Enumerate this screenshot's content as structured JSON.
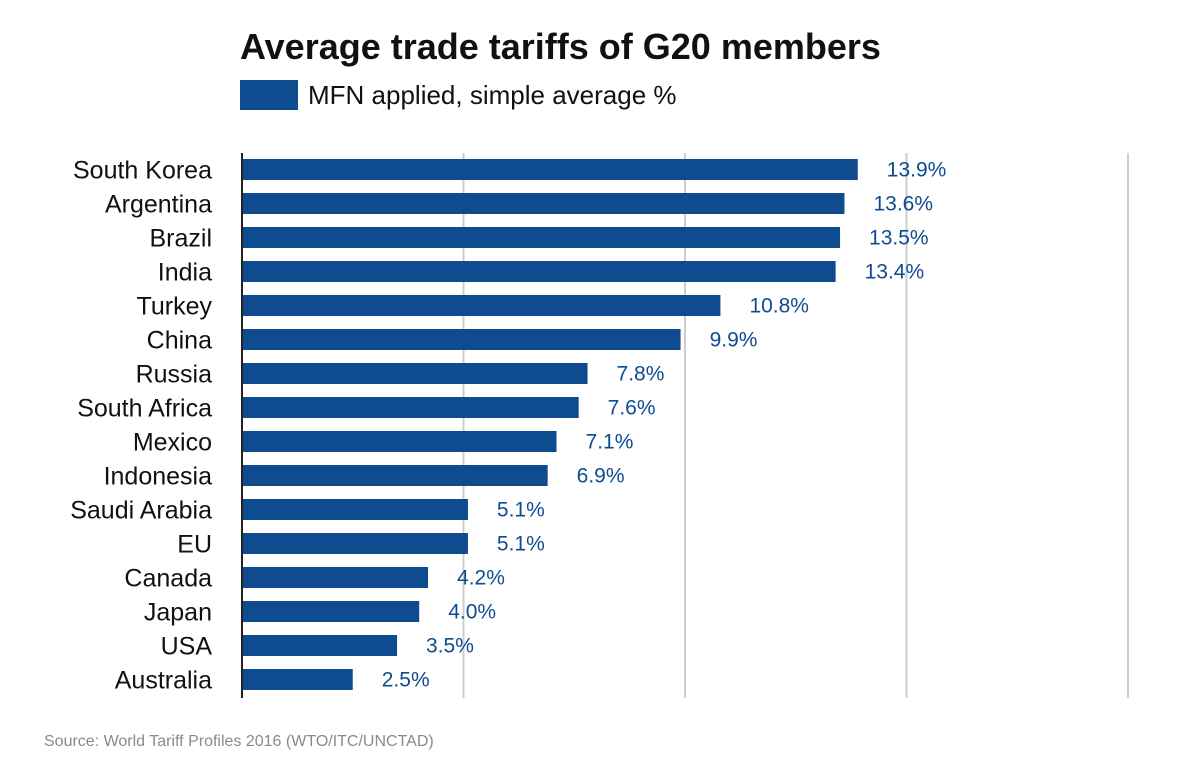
{
  "chart_data": {
    "type": "bar",
    "orientation": "horizontal",
    "title": "Average trade tariffs of G20 members",
    "legend": [
      {
        "label": "MFN applied, simple average %",
        "color": "#0f4c8f"
      }
    ],
    "categories": [
      "South Korea",
      "Argentina",
      "Brazil",
      "India",
      "Turkey",
      "China",
      "Russia",
      "South Africa",
      "Mexico",
      "Indonesia",
      "Saudi Arabia",
      "EU",
      "Canada",
      "Japan",
      "USA",
      "Australia"
    ],
    "series": [
      {
        "name": "MFN applied, simple average %",
        "values": [
          13.9,
          13.6,
          13.5,
          13.4,
          10.8,
          9.9,
          7.8,
          7.6,
          7.1,
          6.9,
          5.1,
          5.1,
          4.2,
          4.0,
          3.5,
          2.5
        ],
        "labels": [
          "13.9%",
          "13.6%",
          "13.5%",
          "13.4%",
          "10.8%",
          "9.9%",
          "7.8%",
          "7.6%",
          "7.1%",
          "6.9%",
          "5.1%",
          "5.1%",
          "4.2%",
          "4.0%",
          "3.5%",
          "2.5%"
        ]
      }
    ],
    "xlim": [
      0,
      20
    ],
    "gridlines_x": [
      5,
      10,
      15,
      20
    ],
    "grid": "vertical",
    "x_tick_labels": false,
    "legend_position": "top",
    "bar_color": "#0f4c8f",
    "label_color": "#0f4c8f",
    "grid_color": "#cccccc"
  },
  "source": "Source: World Tariff Profiles 2016 (WTO/ITC/UNCTAD)"
}
